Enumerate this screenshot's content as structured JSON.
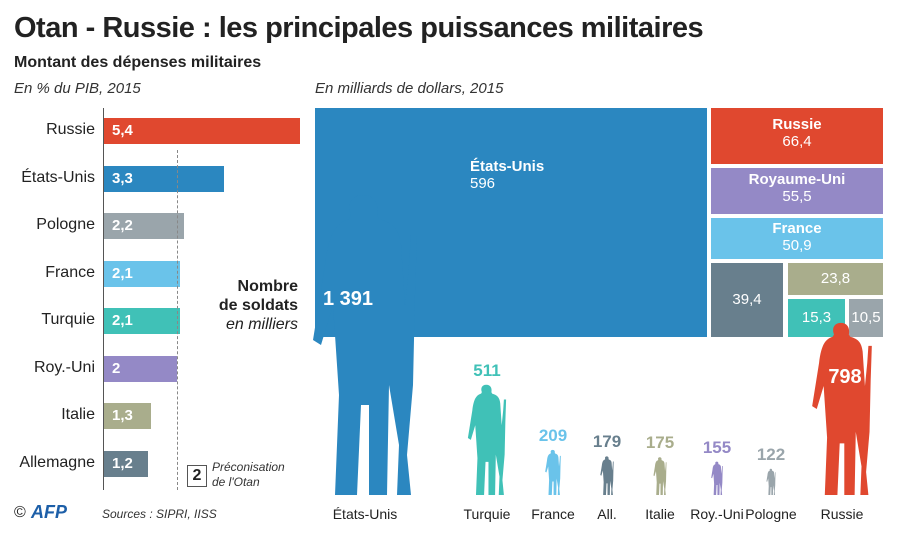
{
  "title": "Otan - Russie : les principales puissances militaires",
  "subtitle": "Montant des dépenses militaires",
  "colors": {
    "Russie": "#e0482f",
    "États-Unis": "#2b87c0",
    "Pologne": "#9aa5ab",
    "France": "#6ac3ea",
    "Turquie": "#40c1b7",
    "Roy.-Uni": "#9489c6",
    "Italie": "#a9ad8c",
    "Allemagne": "#687f8d"
  },
  "chart_data": [
    {
      "type": "bar",
      "title": "En % du PIB, 2015",
      "orientation": "horizontal",
      "categories": [
        "Russie",
        "États-Unis",
        "Pologne",
        "France",
        "Turquie",
        "Roy.-Uni",
        "Italie",
        "Allemagne"
      ],
      "values": [
        5.4,
        3.3,
        2.2,
        2.1,
        2.1,
        2,
        1.3,
        1.2
      ],
      "value_labels": [
        "5,4",
        "3,3",
        "2,2",
        "2,1",
        "2,1",
        "2",
        "1,3",
        "1,2"
      ],
      "reference": {
        "value": 2,
        "label": "2",
        "text": [
          "Préconisation",
          "de l'Otan"
        ]
      }
    },
    {
      "type": "treemap",
      "title": "En milliards de dollars, 2015",
      "cells": [
        {
          "name": "États-Unis",
          "value": 596,
          "label": "596"
        },
        {
          "name": "Russie",
          "value": 66.4,
          "label": "66,4"
        },
        {
          "name": "Royaume-Uni",
          "value": 55.5,
          "label": "55,5"
        },
        {
          "name": "France",
          "value": 50.9,
          "label": "50,9"
        },
        {
          "name": "",
          "value": 39.4,
          "label": "39,4"
        },
        {
          "name": "",
          "value": 23.8,
          "label": "23,8"
        },
        {
          "name": "",
          "value": 15.3,
          "label": "15,3"
        },
        {
          "name": "",
          "value": 10.5,
          "label": "10,5"
        }
      ]
    },
    {
      "type": "pictogram",
      "title": [
        "Nombre",
        "de soldats",
        "en milliers"
      ],
      "categories": [
        "États-Unis",
        "Turquie",
        "France",
        "All.",
        "Italie",
        "Roy.-Uni",
        "Pologne",
        "Russie"
      ],
      "values": [
        1391,
        511,
        209,
        179,
        175,
        155,
        122,
        798
      ],
      "value_labels": [
        "1 391",
        "511",
        "209",
        "179",
        "175",
        "155",
        "122",
        "798"
      ]
    }
  ],
  "footer": {
    "copyright": "©",
    "logo": "AFP",
    "sources": "Sources : SIPRI, IISS"
  }
}
